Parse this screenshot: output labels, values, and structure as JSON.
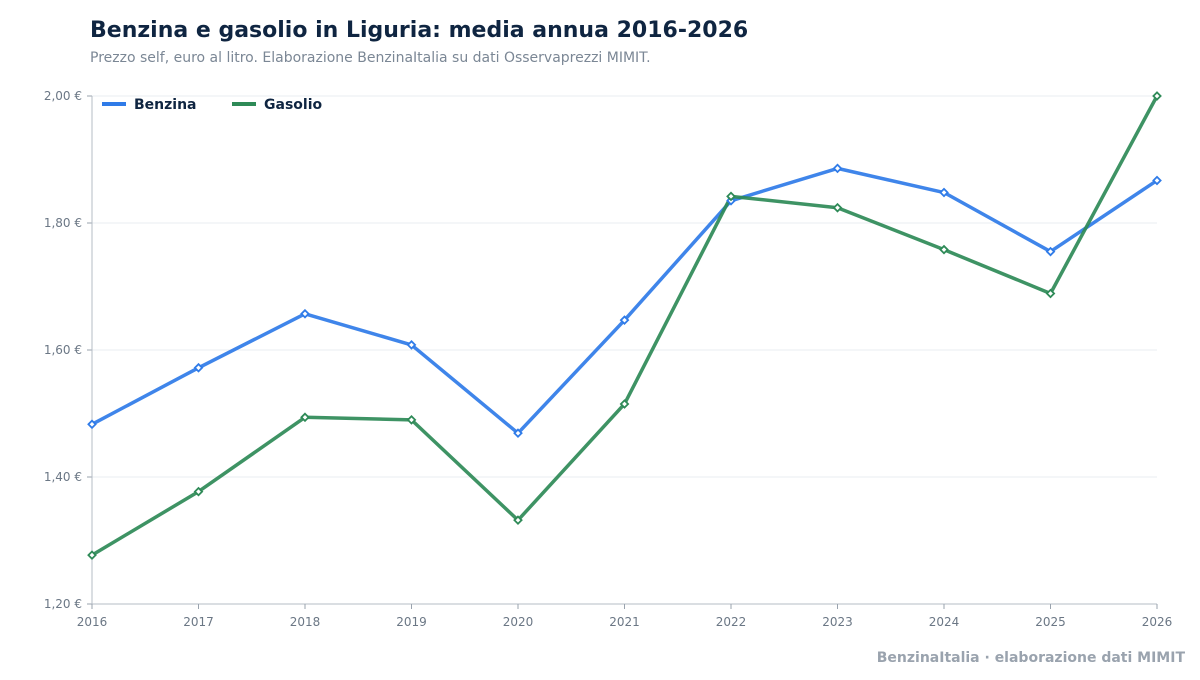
{
  "header": {
    "title": "Benzina e gasolio in Liguria: media annua 2016-2026",
    "subtitle": "Prezzo self, euro al litro. Elaborazione BenzinaItalia su dati Osservaprezzi MIMIT."
  },
  "footer": {
    "credit": "BenzinaItalia · elaborazione dati MIMIT"
  },
  "chart_data": {
    "type": "line",
    "title": "Benzina e gasolio in Liguria: media annua 2016-2026",
    "subtitle": "Prezzo self, euro al litro. Elaborazione BenzinaItalia su dati Osservaprezzi MIMIT.",
    "xlabel": "",
    "ylabel": "",
    "x": [
      2016,
      2017,
      2018,
      2019,
      2020,
      2021,
      2022,
      2023,
      2024,
      2025,
      2026
    ],
    "series": [
      {
        "name": "Benzina",
        "color": "#2f7be8",
        "values": [
          1.483,
          1.572,
          1.657,
          1.608,
          1.469,
          1.647,
          1.835,
          1.886,
          1.848,
          1.755,
          1.867
        ]
      },
      {
        "name": "Gasolio",
        "color": "#2e8a57",
        "values": [
          1.277,
          1.377,
          1.494,
          1.49,
          1.332,
          1.515,
          1.842,
          1.824,
          1.758,
          1.689,
          2.0
        ]
      }
    ],
    "ylim": [
      1.2,
      2.0
    ],
    "yticks": [
      1.2,
      1.4,
      1.6,
      1.8,
      2.0
    ],
    "ytick_labels": [
      "1,20 €",
      "1,40 €",
      "1,60 €",
      "1,80 €",
      "2,00 €"
    ],
    "xtick_labels": [
      "2016",
      "2017",
      "2018",
      "2019",
      "2020",
      "2021",
      "2022",
      "2023",
      "2024",
      "2025",
      "2026"
    ],
    "grid": true,
    "legend_position": "top-left"
  }
}
